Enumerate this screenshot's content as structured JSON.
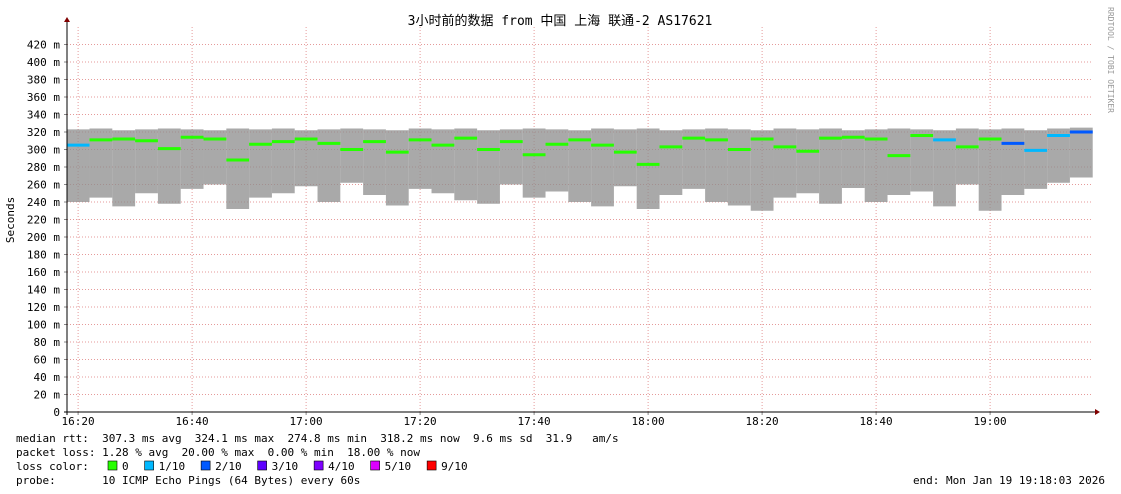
{
  "chart_data": {
    "type": "smoke",
    "title": "3小时前的数据 from 中国 上海 联通-2 AS17621",
    "y_label": "Seconds",
    "watermark": "RRDTOOL / TOBI OETIKER",
    "x": [
      980,
      984,
      988,
      992,
      996,
      1000,
      1004,
      1008,
      1012,
      1016,
      1020,
      1024,
      1028,
      1032,
      1036,
      1040,
      1044,
      1048,
      1052,
      1056,
      1060,
      1064,
      1068,
      1072,
      1076,
      1080,
      1084,
      1088,
      1092,
      1096,
      1100,
      1104,
      1108,
      1112,
      1116,
      1120,
      1124,
      1128,
      1132,
      1136,
      1140,
      1144,
      1148,
      1152,
      1156
    ],
    "median": [
      0.305,
      0.311,
      0.312,
      0.31,
      0.301,
      0.314,
      0.312,
      0.288,
      0.306,
      0.309,
      0.312,
      0.307,
      0.3,
      0.309,
      0.297,
      0.311,
      0.305,
      0.313,
      0.3,
      0.309,
      0.294,
      0.306,
      0.311,
      0.305,
      0.297,
      0.283,
      0.303,
      0.313,
      0.311,
      0.3,
      0.312,
      0.303,
      0.298,
      0.313,
      0.314,
      0.312,
      0.293,
      0.316,
      0.311,
      0.303,
      0.312,
      0.307,
      0.299,
      0.316,
      0.32
    ],
    "low": [
      0.24,
      0.245,
      0.235,
      0.25,
      0.238,
      0.255,
      0.26,
      0.232,
      0.245,
      0.25,
      0.258,
      0.24,
      0.262,
      0.248,
      0.236,
      0.255,
      0.25,
      0.242,
      0.238,
      0.26,
      0.245,
      0.252,
      0.24,
      0.235,
      0.258,
      0.232,
      0.248,
      0.255,
      0.24,
      0.236,
      0.23,
      0.245,
      0.25,
      0.238,
      0.256,
      0.24,
      0.248,
      0.252,
      0.235,
      0.26,
      0.23,
      0.248,
      0.255,
      0.262,
      0.268
    ],
    "high": [
      0.323,
      0.324,
      0.322,
      0.323,
      0.324,
      0.323,
      0.322,
      0.324,
      0.323,
      0.324,
      0.322,
      0.323,
      0.324,
      0.323,
      0.322,
      0.324,
      0.323,
      0.324,
      0.322,
      0.323,
      0.324,
      0.323,
      0.322,
      0.324,
      0.323,
      0.324,
      0.322,
      0.323,
      0.324,
      0.323,
      0.322,
      0.324,
      0.323,
      0.324,
      0.322,
      0.323,
      0.324,
      0.323,
      0.322,
      0.324,
      0.323,
      0.324,
      0.322,
      0.324,
      0.325
    ],
    "loss": [
      1,
      0,
      0,
      0,
      0,
      0,
      0,
      0,
      0,
      0,
      0,
      0,
      0,
      0,
      0,
      0,
      0,
      0,
      0,
      0,
      0,
      0,
      0,
      0,
      0,
      0,
      0,
      0,
      0,
      0,
      0,
      0,
      0,
      0,
      0,
      0,
      0,
      0,
      1,
      0,
      0,
      2,
      1,
      1,
      2
    ],
    "xlim": [
      978.05,
      1158.05
    ],
    "xticks": [
      {
        "value": 980,
        "label": "16:20"
      },
      {
        "value": 1000,
        "label": "16:40"
      },
      {
        "value": 1020,
        "label": "17:00"
      },
      {
        "value": 1040,
        "label": "17:20"
      },
      {
        "value": 1060,
        "label": "17:40"
      },
      {
        "value": 1080,
        "label": "18:00"
      },
      {
        "value": 1100,
        "label": "18:20"
      },
      {
        "value": 1120,
        "label": "18:40"
      },
      {
        "value": 1140,
        "label": "19:00"
      }
    ],
    "ylim": [
      0,
      0.44
    ],
    "yticks": [
      0,
      {
        "value": 0.02,
        "label": "20 m"
      },
      {
        "value": 0.04,
        "label": "40 m"
      },
      {
        "value": 0.06,
        "label": "60 m"
      },
      {
        "value": 0.08,
        "label": "80 m"
      },
      {
        "value": 0.1,
        "label": "100 m"
      },
      {
        "value": 0.12,
        "label": "120 m"
      },
      {
        "value": 0.14,
        "label": "140 m"
      },
      {
        "value": 0.16,
        "label": "160 m"
      },
      {
        "value": 0.18,
        "label": "180 m"
      },
      {
        "value": 0.2,
        "label": "200 m"
      },
      {
        "value": 0.22,
        "label": "220 m"
      },
      {
        "value": 0.24,
        "label": "240 m"
      },
      {
        "value": 0.26,
        "label": "260 m"
      },
      {
        "value": 0.28,
        "label": "280 m"
      },
      {
        "value": 0.3,
        "label": "300 m"
      },
      {
        "value": 0.32,
        "label": "320 m"
      },
      {
        "value": 0.34,
        "label": "340 m"
      },
      {
        "value": 0.36,
        "label": "360 m"
      },
      {
        "value": 0.38,
        "label": "380 m"
      },
      {
        "value": 0.4,
        "label": "400 m"
      },
      {
        "value": 0.42,
        "label": "420 m"
      }
    ],
    "grid": true,
    "smoke_color": "#8c8c8c",
    "legend": {
      "title": "loss color:",
      "items": [
        {
          "name": "0",
          "color": "#26ff00"
        },
        {
          "name": "1/10",
          "color": "#00b8ff"
        },
        {
          "name": "2/10",
          "color": "#0059ff"
        },
        {
          "name": "3/10",
          "color": "#5e00ff"
        },
        {
          "name": "4/10",
          "color": "#7e00ff"
        },
        {
          "name": "5/10",
          "color": "#dd00ff"
        },
        {
          "name": "9/10",
          "color": "#ff0000"
        }
      ]
    },
    "stats": "median rtt:  307.3 ms avg  324.1 ms max  274.8 ms min  318.2 ms now  9.6 ms sd  31.9   am/s",
    "packet_loss": "packet loss: 1.28 % avg  20.00 % max  0.00 % min  18.00 % now",
    "probe": "probe:       10 ICMP Echo Pings (64 Bytes) every 60s",
    "end": "end: Mon Jan 19 19:18:03 2026"
  }
}
